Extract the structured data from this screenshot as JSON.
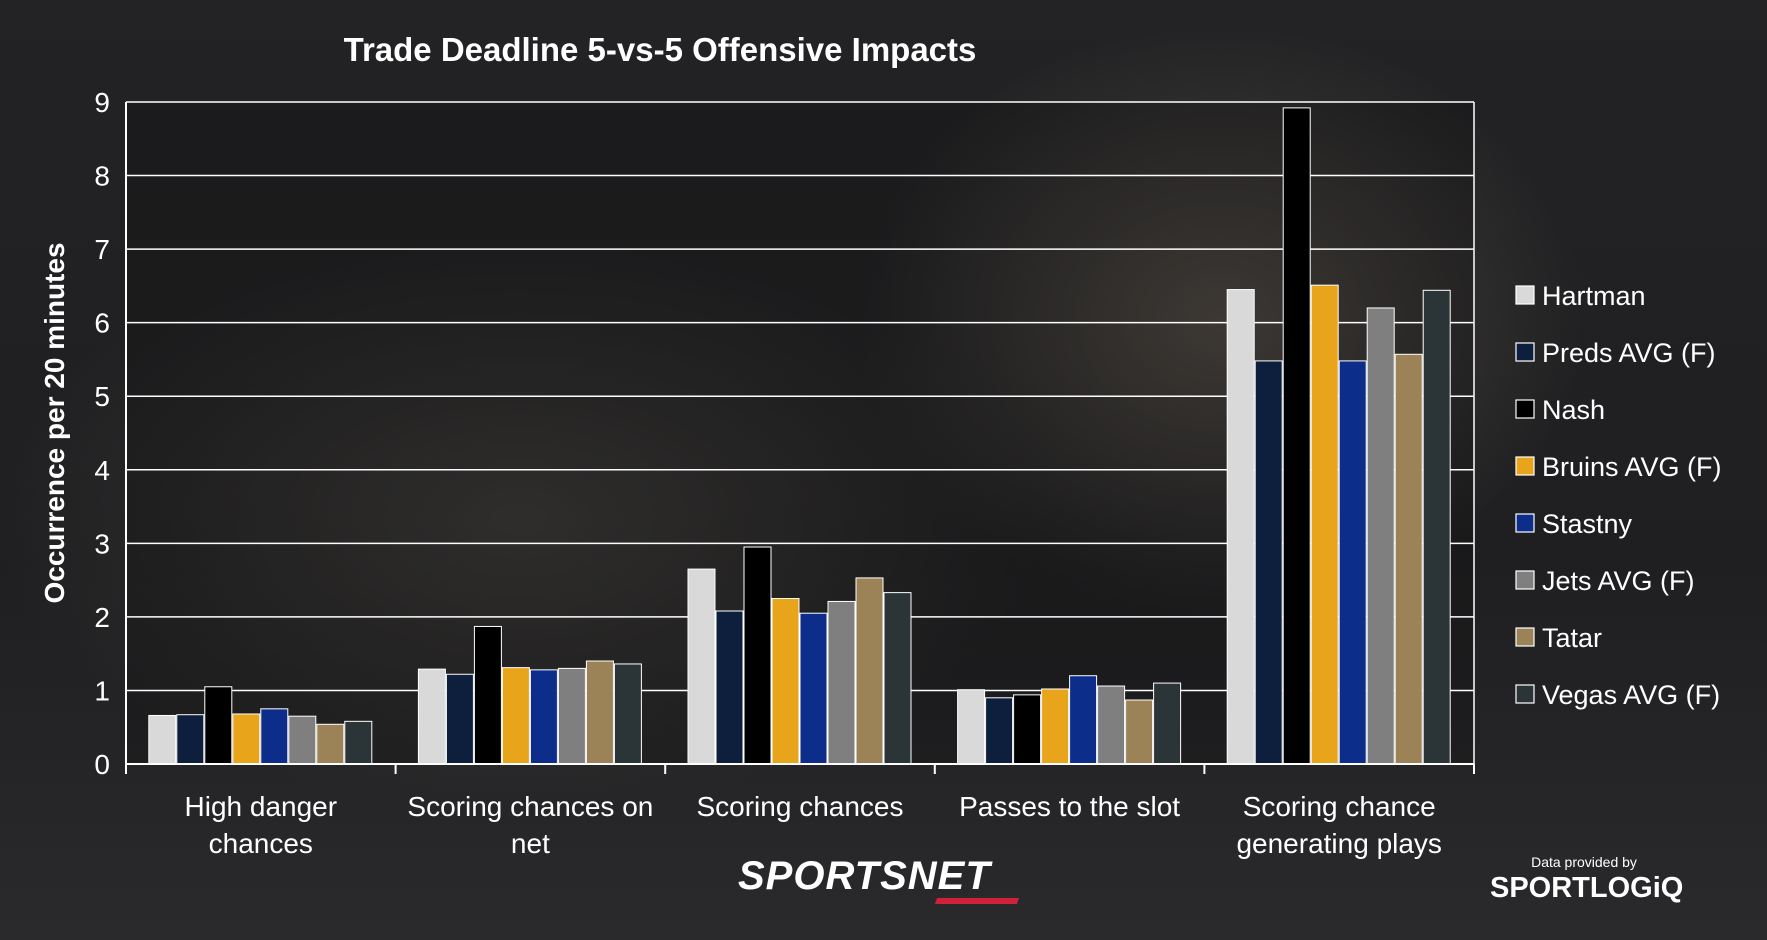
{
  "chart_data": {
    "type": "bar",
    "title": "Trade Deadline 5-vs-5 Offensive Impacts",
    "xlabel": "",
    "ylabel": "Occurrence per 20 minutes",
    "ylim": [
      0,
      9
    ],
    "yticks": [
      0,
      1,
      2,
      3,
      4,
      5,
      6,
      7,
      8,
      9
    ],
    "grid": true,
    "legend_position": "right",
    "categories": [
      [
        "High danger",
        "chances"
      ],
      [
        "Scoring chances on",
        "net"
      ],
      [
        "Scoring chances"
      ],
      [
        "Passes to the slot"
      ],
      [
        "Scoring chance",
        "generating plays"
      ]
    ],
    "series": [
      {
        "name": "Hartman",
        "color": "#d9d9d9",
        "values": [
          0.66,
          1.29,
          2.65,
          1.01,
          6.45
        ]
      },
      {
        "name": "Preds AVG (F)",
        "color": "#0d1f3c",
        "values": [
          0.67,
          1.22,
          2.08,
          0.9,
          5.48
        ]
      },
      {
        "name": "Nash",
        "color": "#000000",
        "values": [
          1.05,
          1.87,
          2.95,
          0.94,
          8.92
        ]
      },
      {
        "name": "Bruins AVG (F)",
        "color": "#e8a51b",
        "values": [
          0.68,
          1.31,
          2.25,
          1.02,
          6.51
        ]
      },
      {
        "name": "Stastny",
        "color": "#0c2e8a",
        "values": [
          0.75,
          1.28,
          2.05,
          1.2,
          5.48
        ]
      },
      {
        "name": "Jets AVG (F)",
        "color": "#7f7f7f",
        "values": [
          0.65,
          1.3,
          2.21,
          1.06,
          6.2
        ]
      },
      {
        "name": "Tatar",
        "color": "#9c8357",
        "values": [
          0.54,
          1.4,
          2.53,
          0.87,
          5.57
        ]
      },
      {
        "name": "Vegas AVG (F)",
        "color": "#2b3436",
        "values": [
          0.58,
          1.36,
          2.33,
          1.1,
          6.44
        ]
      }
    ]
  },
  "branding": {
    "sportsnet": "SPORTSNET",
    "provided_by": "Data provided by",
    "sportlogiq": "SPORTLOGiQ"
  }
}
